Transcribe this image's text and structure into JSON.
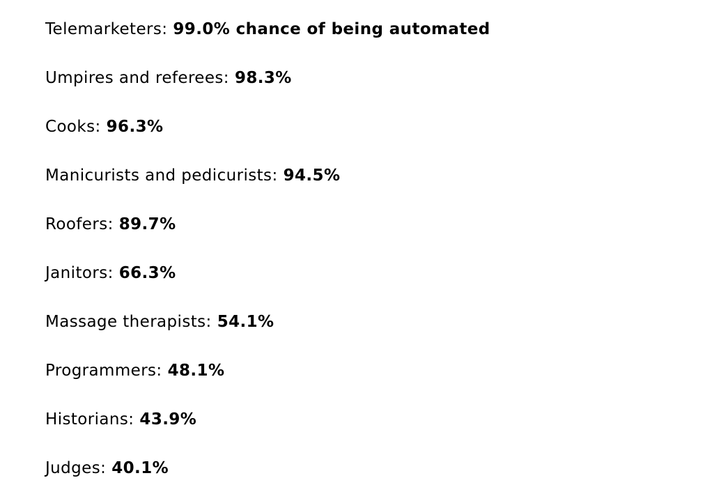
{
  "page": {
    "background": "#ffffff",
    "text_color": "#000000"
  },
  "list": {
    "items": [
      {
        "label": "Telemarketers:",
        "value": "99.0% chance of being automated"
      },
      {
        "label": "Umpires and referees:",
        "value": "98.3%"
      },
      {
        "label": "Cooks:",
        "value": "96.3%"
      },
      {
        "label": "Manicurists and pedicurists:",
        "value": "94.5%"
      },
      {
        "label": "Roofers:",
        "value": "89.7%"
      },
      {
        "label": "Janitors:",
        "value": "66.3%"
      },
      {
        "label": "Massage therapists:",
        "value": "54.1%"
      },
      {
        "label": "Programmers:",
        "value": "48.1%"
      },
      {
        "label": "Historians:",
        "value": "43.9%"
      },
      {
        "label": "Judges:",
        "value": "40.1%"
      }
    ]
  }
}
